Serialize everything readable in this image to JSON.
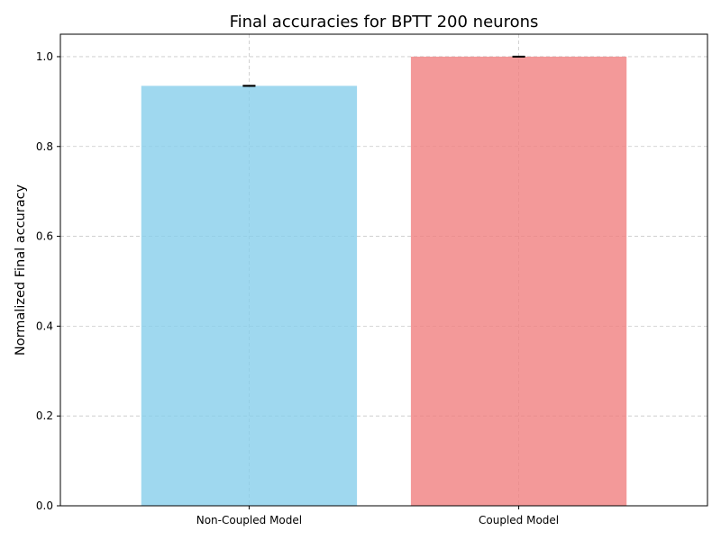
{
  "chart_data": {
    "type": "bar",
    "title": "Final accuracies for BPTT 200 neurons",
    "xlabel": "",
    "ylabel": "Normalized Final accuracy",
    "categories": [
      "Non-Coupled Model",
      "Coupled Model"
    ],
    "values": [
      0.935,
      1.0
    ],
    "errors": [
      0.0,
      0.0
    ],
    "ylim": [
      0,
      1.05
    ],
    "yticks": [
      0.0,
      0.2,
      0.4,
      0.6,
      0.8,
      1.0
    ],
    "ytick_labels": [
      "0.0",
      "0.2",
      "0.4",
      "0.6",
      "0.8",
      "1.0"
    ],
    "grid": true,
    "colors": [
      "#87ceeb",
      "#f08080"
    ],
    "bar_alpha": 0.8
  }
}
